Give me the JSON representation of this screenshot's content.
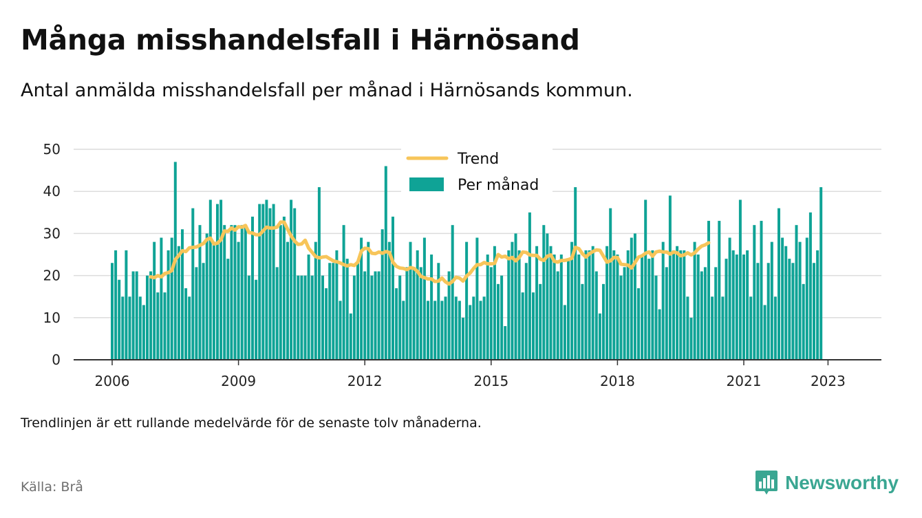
{
  "header": {
    "title": "Många misshandelsfall i Härnösand",
    "subtitle": "Antal anmälda misshandelsfall per månad i Härnösands kommun."
  },
  "footer": {
    "note": "Trendlinjen är ett rullande medelvärde för de senaste tolv månaderna.",
    "source": "Källa: Brå",
    "brand": "Newsworthy",
    "brand_icon": "bar-chart-logo-icon"
  },
  "colors": {
    "bars": "#0fa396",
    "trend": "#f7c55a",
    "grid": "#dcdcdc",
    "axis": "#333333",
    "brand": "#3aa692"
  },
  "chart_data": {
    "type": "bar",
    "start": "2006-01",
    "x_tick_labels": [
      "2006",
      "2009",
      "2012",
      "2015",
      "2018",
      "2021",
      "2023"
    ],
    "y_ticks": [
      0,
      10,
      20,
      30,
      40,
      50
    ],
    "ylim": [
      0,
      50
    ],
    "grid": true,
    "legend_position": "top-center",
    "series": [
      {
        "name": "Per månad",
        "type": "bar",
        "values": [
          23,
          26,
          19,
          15,
          26,
          15,
          21,
          21,
          15,
          13,
          20,
          21,
          28,
          16,
          29,
          16,
          26,
          29,
          47,
          27,
          31,
          17,
          15,
          36,
          22,
          32,
          23,
          30,
          38,
          28,
          37,
          38,
          32,
          24,
          32,
          32,
          28,
          32,
          32,
          20,
          34,
          19,
          37,
          37,
          38,
          36,
          37,
          22,
          32,
          34,
          28,
          38,
          36,
          20,
          20,
          20,
          25,
          20,
          28,
          41,
          20,
          17,
          23,
          23,
          26,
          14,
          32,
          24,
          11,
          20,
          23,
          29,
          21,
          28,
          20,
          21,
          21,
          31,
          46,
          28,
          34,
          17,
          20,
          14,
          22,
          28,
          22,
          26,
          22,
          29,
          14,
          25,
          14,
          23,
          14,
          15,
          21,
          32,
          15,
          14,
          10,
          28,
          13,
          15,
          29,
          14,
          15,
          25,
          22,
          27,
          18,
          20,
          8,
          26,
          28,
          30,
          26,
          16,
          23,
          35,
          16,
          27,
          18,
          32,
          30,
          27,
          25,
          21,
          25,
          13,
          24,
          28,
          41,
          25,
          18,
          26,
          26,
          27,
          21,
          11,
          18,
          27,
          36,
          26,
          25,
          20,
          22,
          26,
          29,
          30,
          17,
          25,
          38,
          24,
          26,
          20,
          12,
          28,
          22,
          39,
          26,
          27,
          26,
          26,
          15,
          10,
          28,
          25,
          21,
          22,
          33,
          15,
          22,
          33,
          15,
          24,
          29,
          26,
          25,
          38,
          25,
          26,
          15,
          32,
          23,
          33,
          13,
          23,
          28,
          15,
          36,
          29,
          27,
          24,
          23,
          32,
          28,
          18,
          29,
          35,
          23,
          26,
          41
        ]
      },
      {
        "name": "Trend",
        "type": "line",
        "start": "2006-12",
        "values": [
          19.7,
          19.5,
          20.0,
          19.7,
          20.5,
          20.7,
          21.2,
          23.8,
          24.8,
          25.9,
          25.7,
          26.6,
          26.7,
          26.8,
          27.2,
          27.6,
          28.6,
          28.9,
          27.5,
          27.7,
          28.5,
          30.6,
          30.5,
          31.3,
          30.8,
          31.6,
          31.5,
          31.9,
          30.2,
          30.1,
          29.7,
          29.7,
          30.6,
          31.5,
          31.3,
          31.3,
          31.5,
          32.7,
          32.7,
          31.0,
          29.4,
          28.2,
          27.4,
          27.5,
          28.4,
          26.5,
          25.5,
          24.5,
          24.2,
          24.4,
          24.5,
          24.0,
          23.5,
          23.3,
          23.0,
          22.6,
          22.3,
          22.6,
          22.4,
          23.2,
          25.8,
          26.5,
          26.4,
          25.3,
          25.2,
          25.6,
          25.3,
          25.7,
          25.5,
          23.2,
          22.2,
          21.8,
          21.7,
          21.4,
          21.9,
          21.7,
          21.0,
          19.8,
          19.5,
          19.2,
          19.2,
          18.6,
          18.7,
          19.4,
          18.5,
          18.0,
          18.6,
          19.6,
          19.4,
          18.7,
          19.9,
          20.6,
          21.7,
          22.6,
          22.6,
          23.1,
          22.8,
          22.8,
          22.9,
          25.0,
          24.4,
          24.6,
          24.0,
          24.3,
          23.5,
          24.3,
          25.6,
          25.5,
          24.9,
          24.8,
          24.8,
          23.9,
          23.6,
          24.6,
          24.9,
          23.4,
          23.2,
          23.6,
          23.6,
          23.8,
          24.1,
          26.7,
          26.4,
          25.2,
          24.4,
          25.2,
          25.7,
          26.1,
          26.0,
          24.6,
          23.2,
          23.5,
          24.3,
          24.3,
          22.7,
          22.6,
          22.5,
          21.8,
          23.1,
          24.4,
          24.7,
          25.3,
          25.6,
          24.6,
          25.6,
          25.8,
          25.6,
          25.6,
          25.1,
          25.6,
          25.4,
          24.7,
          24.9,
          25.4,
          24.9,
          25.4,
          26.3,
          27.0,
          27.3,
          27.8
        ]
      }
    ]
  }
}
